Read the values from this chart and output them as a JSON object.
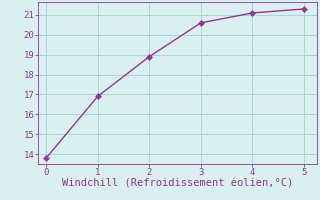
{
  "x": [
    0,
    1,
    2,
    3,
    4,
    5
  ],
  "y": [
    13.8,
    16.9,
    18.9,
    20.6,
    21.1,
    21.3
  ],
  "line_color": "#993399",
  "marker": "D",
  "marker_size": 3,
  "xlabel": "Windchill (Refroidissement éolien,°C)",
  "xlabel_fontsize": 7.5,
  "xlim": [
    -0.15,
    5.25
  ],
  "ylim": [
    13.5,
    21.65
  ],
  "yticks": [
    14,
    15,
    16,
    17,
    18,
    19,
    20,
    21
  ],
  "xticks": [
    0,
    1,
    2,
    3,
    4,
    5
  ],
  "grid_color": "#aad4d4",
  "background_color": "#d8f0f0",
  "tick_color": "#993399",
  "tick_fontsize": 6.5
}
